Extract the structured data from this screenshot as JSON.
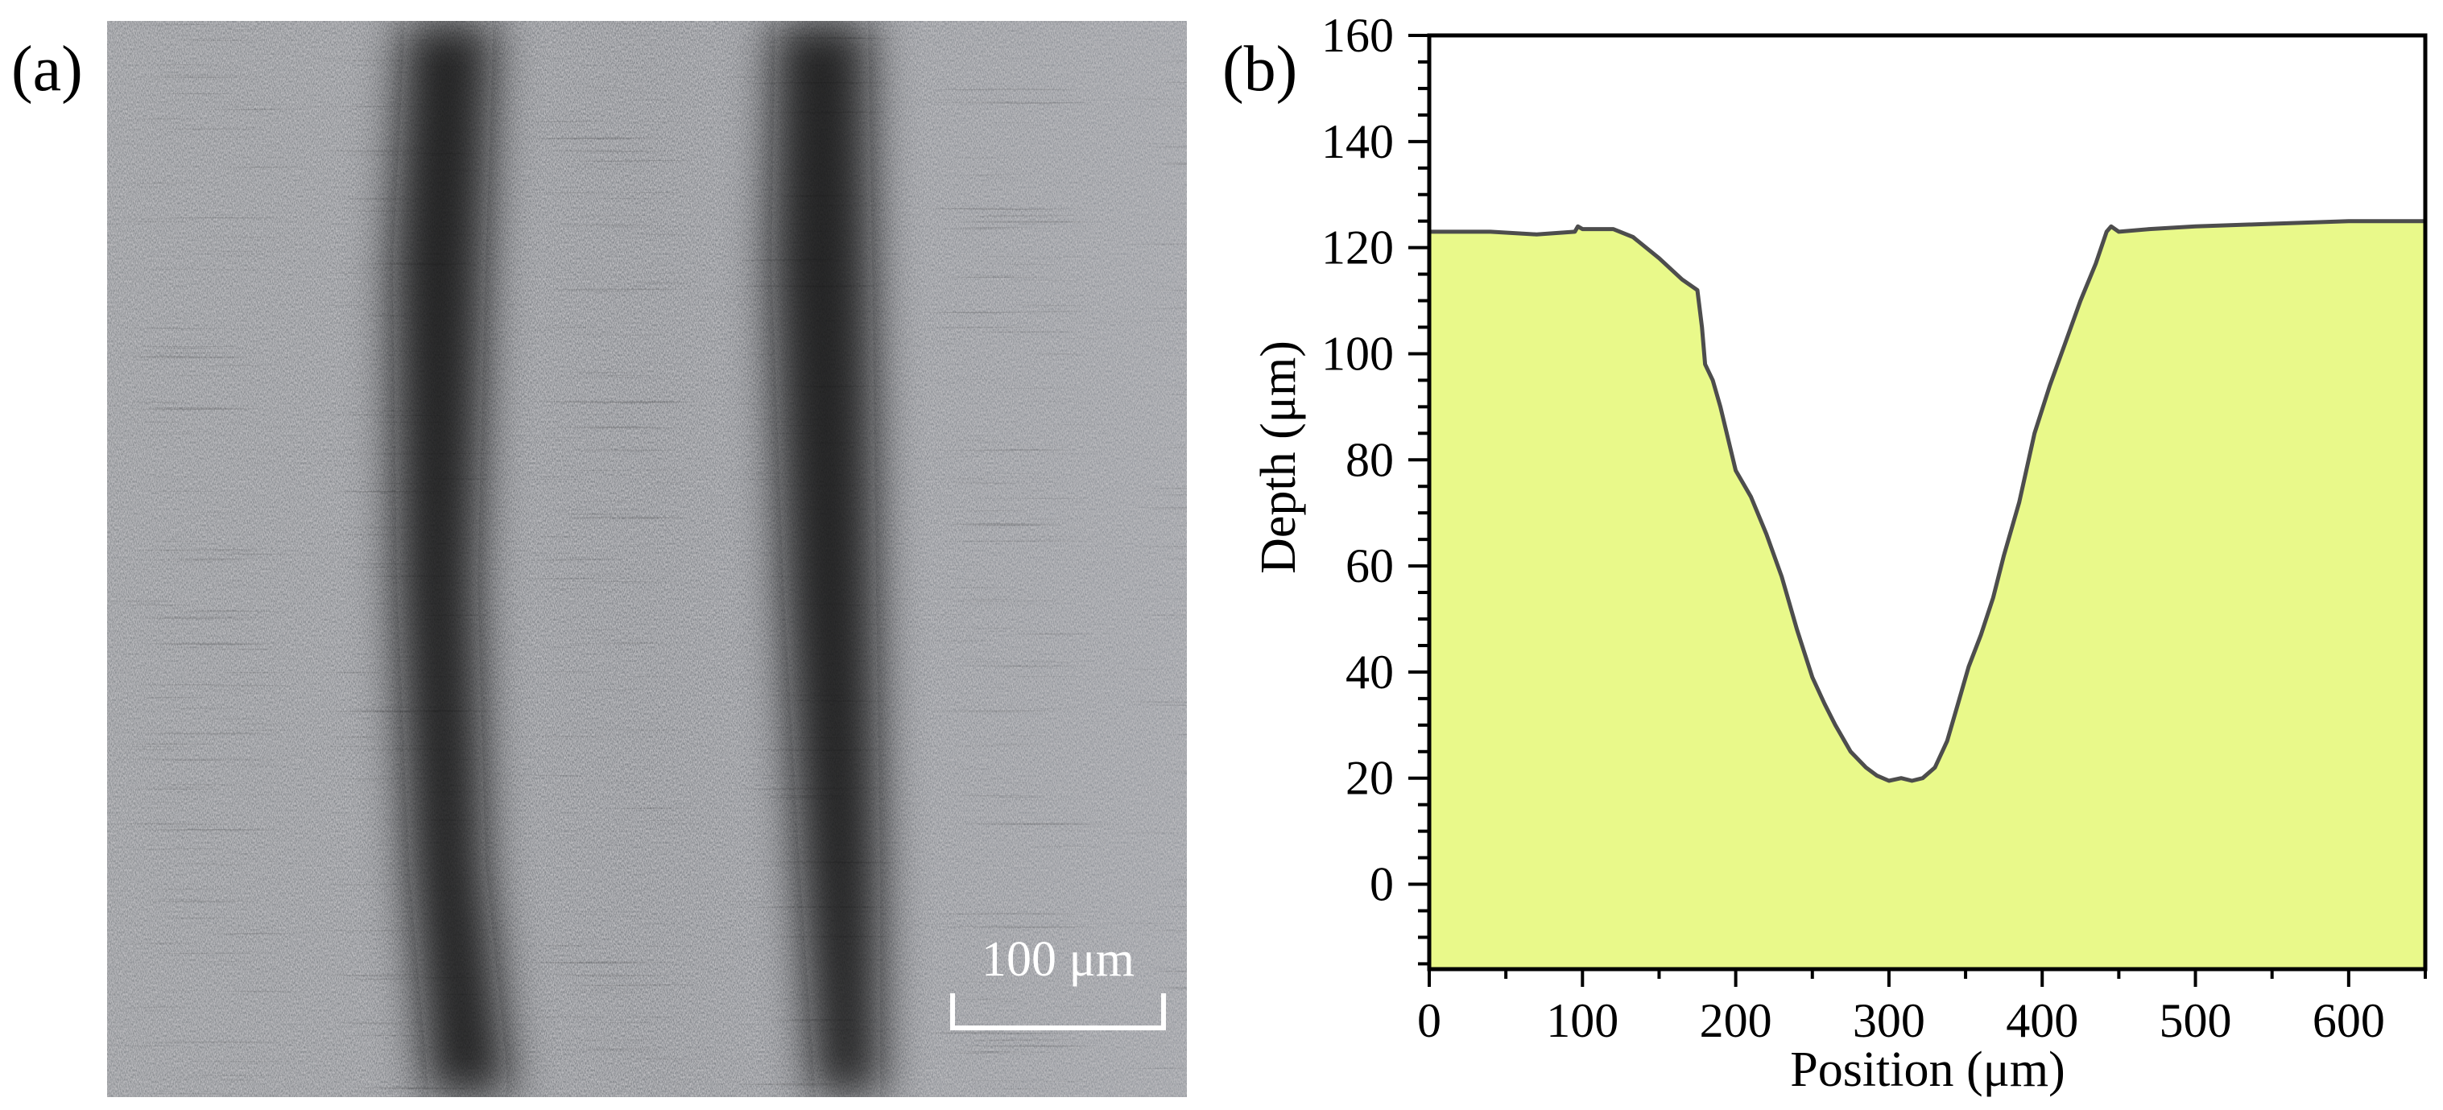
{
  "panels": {
    "a_label": "(a)",
    "b_label": "(b)"
  },
  "micrograph": {
    "scale_bar_label": "100 μm",
    "scale_bar_length_um": 100,
    "colors": {
      "surface": "#8a8e94",
      "groove": "#141414",
      "scale_bar": "#ffffff"
    }
  },
  "chart_data": {
    "type": "area",
    "title": "",
    "xlabel": "Position (μm)",
    "ylabel": "Depth (μm)",
    "xlim": [
      0,
      650
    ],
    "ylim": [
      -16,
      160
    ],
    "xticks": [
      0,
      100,
      200,
      300,
      400,
      500,
      600
    ],
    "yticks": [
      0,
      20,
      40,
      60,
      80,
      100,
      120,
      140,
      160
    ],
    "grid": false,
    "fill_color": "#e9f98a",
    "line_color": "#4d4d4d",
    "series": [
      {
        "x": [
          0,
          40,
          70,
          95,
          97,
          100,
          120,
          133,
          150,
          165,
          175,
          178,
          180,
          185,
          190,
          195,
          200,
          210,
          220,
          230,
          240,
          250,
          258,
          265,
          275,
          285,
          292,
          300,
          308,
          315,
          322,
          330,
          338,
          345,
          352,
          360,
          368,
          375,
          385,
          395,
          405,
          415,
          425,
          435,
          442,
          445,
          450,
          470,
          500,
          550,
          600,
          650
        ],
        "y": [
          123,
          123,
          122.5,
          123,
          124,
          123.5,
          123.5,
          122,
          118,
          114,
          112,
          105,
          98,
          95,
          90,
          84,
          78,
          73,
          66,
          58,
          48,
          39,
          34,
          30,
          25,
          22,
          20.5,
          19.5,
          20,
          19.5,
          20,
          22,
          27,
          34,
          41,
          47,
          54,
          62,
          72,
          85,
          94,
          102,
          110,
          117,
          123,
          124,
          123,
          123.5,
          124,
          124.5,
          125,
          125
        ]
      }
    ]
  }
}
